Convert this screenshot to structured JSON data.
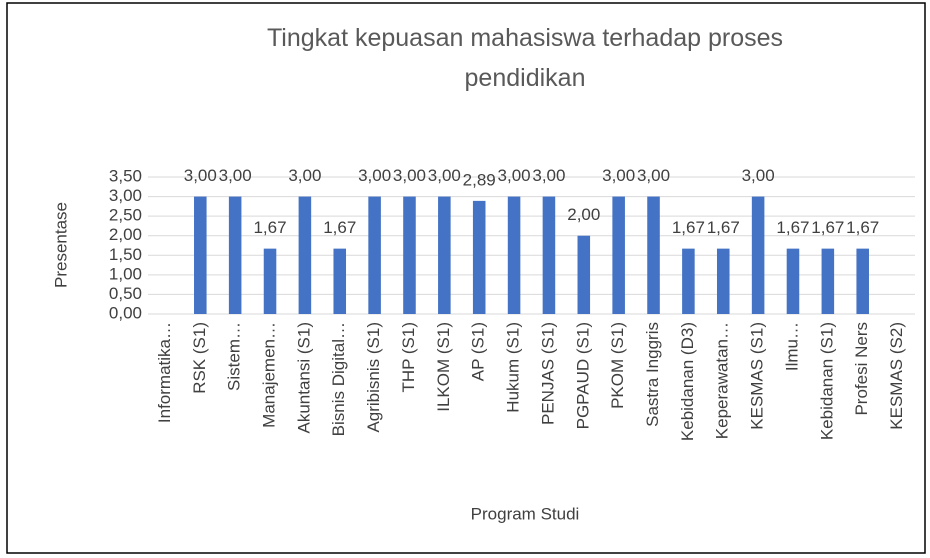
{
  "chart_data": {
    "type": "bar",
    "title": "Tingkat kepuasan mahasiswa terhadap proses pendidikan",
    "x_label": "Program Studi",
    "y_label": "Presentase",
    "categories": [
      "Informatika…",
      "RSK (S1)",
      "Sistem…",
      "Manajemen…",
      "Akuntansi  (S1)",
      "Bisnis Digital…",
      "Agribisnis  (S1)",
      "THP (S1)",
      "ILKOM (S1)",
      "AP (S1)",
      "Hukum (S1)",
      "PENJAS (S1)",
      "PGPAUD (S1)",
      "PKOM (S1)",
      "Sastra Inggris",
      "Kebidanan  (D3)",
      "Keperawatan…",
      "KESMAS (S1)",
      "Ilmu…",
      "Kebidanan (S1)",
      "Profesi Ners",
      "KESMAS (S2)"
    ],
    "values": [
      null,
      3,
      3,
      1.67,
      3,
      1.67,
      3,
      3,
      3,
      2.89,
      3,
      3,
      2,
      3,
      3,
      1.67,
      1.67,
      3,
      1.67,
      1.67,
      1.67,
      null
    ],
    "value_labels": [
      null,
      "3,00",
      "3,00",
      "1,67",
      "3,00",
      "1,67",
      "3,00",
      "3,00",
      "3,00",
      "2,89",
      "3,00",
      "3,00",
      "2,00",
      "3,00",
      "3,00",
      "1,67",
      "1,67",
      "3,00",
      "1,67",
      "1,67",
      "1,67",
      null
    ],
    "color": "#4472c4",
    "ylim": [
      0,
      3.5
    ],
    "yticks": [
      {
        "value": 0,
        "label": "0,00"
      },
      {
        "value": 0.5,
        "label": "0,50"
      },
      {
        "value": 1,
        "label": "1,00"
      },
      {
        "value": 1.5,
        "label": "1,50"
      },
      {
        "value": 2,
        "label": "2,00"
      },
      {
        "value": 2.5,
        "label": "2,50"
      },
      {
        "value": 3,
        "label": "3,00"
      },
      {
        "value": 3.5,
        "label": "3,50"
      }
    ],
    "grid": true
  }
}
